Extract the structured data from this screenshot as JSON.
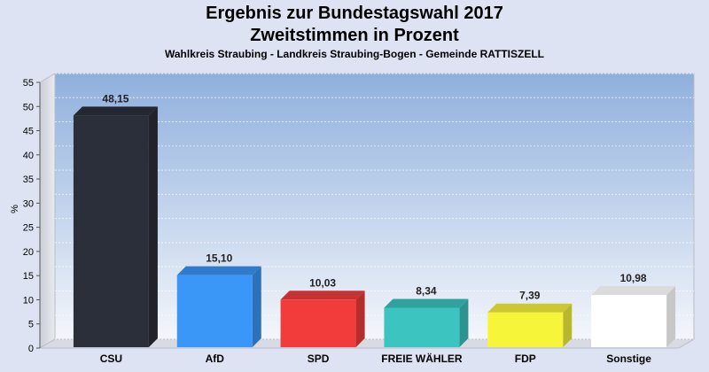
{
  "chart_data": {
    "type": "bar",
    "title": "Ergebnis zur Bundestagswahl 2017",
    "title_line2": "Zweitstimmen in Prozent",
    "subtitle": "Wahlkreis Straubing - Landkreis Straubing-Bogen - Gemeinde RATTISZELL",
    "ylabel": "%",
    "ylim": [
      0,
      55
    ],
    "ytick_step": 5,
    "categories": [
      "CSU",
      "AfD",
      "SPD",
      "FREIE WÄHLER",
      "FDP",
      "Sonstige"
    ],
    "values": [
      48.15,
      15.1,
      10.03,
      8.34,
      7.39,
      10.98
    ],
    "value_labels": [
      "48,15",
      "15,10",
      "10,03",
      "8,34",
      "7,39",
      "10,98"
    ],
    "colors": [
      "#2b2f3a",
      "#3a96f7",
      "#f23c3c",
      "#3cc4c0",
      "#f7f53a",
      "#ffffff"
    ],
    "grid": true,
    "legend": "none"
  }
}
